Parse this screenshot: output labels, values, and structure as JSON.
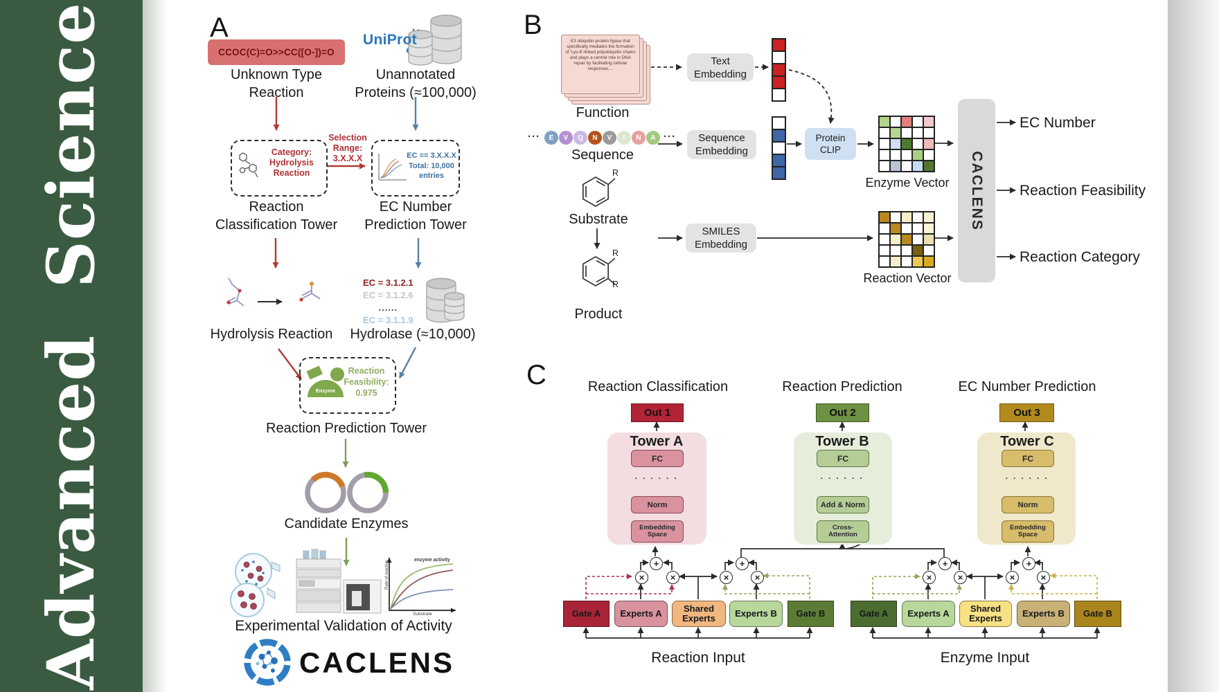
{
  "banner": {
    "title": "Advanced Science",
    "background": "#3a5b41"
  },
  "panel_a": {
    "label": "A",
    "smiles": "CCOC(C)=O>>CC([O-])=O",
    "unknown_lines": [
      "Unknown Type",
      "Reaction"
    ],
    "uniprot": "UniProt",
    "unannotated_lines": [
      "Unannotated",
      "Proteins (≈100,000)"
    ],
    "classification_box_lines": [
      "Category:",
      "Hydrolysis",
      "Reaction"
    ],
    "selection_lines": [
      "Selection",
      "Range:",
      "3.X.X.X"
    ],
    "ec_box_lines": [
      "EC == 3.X.X.X",
      "Total: 10,000",
      "entries"
    ],
    "tower1_lines": [
      "Reaction",
      "Classification Tower"
    ],
    "tower2_lines": [
      "EC Number",
      "Prediction Tower"
    ],
    "ec_list": [
      "EC = 3.1.2.1",
      "EC = 3.1.2.6",
      "......",
      "EC = 3.1.1.9"
    ],
    "hydrolysis_label": "Hydrolysis Reaction",
    "hydrolase_label": "Hydrolase (≈10,000)",
    "enzyme_icon_label": "Enzyme",
    "feasibility_lines": [
      "Reaction",
      "Feasibility:",
      "0.975"
    ],
    "tower3_label": "Reaction Prediction Tower",
    "candidate_label": "Candidate Enzymes",
    "activity_plot": {
      "curve_label": "enzyme activity",
      "ylabel": "Rate of reaction",
      "xlabel": "Substrate"
    },
    "validation_label": "Experimental Validation of Activity",
    "logo_text": "CACLENS"
  },
  "panel_b": {
    "label": "B",
    "function_card_text": "E3 ubiquitin-protein ligase that specifically mediates the formation of 'Lys-6'-linked polyubiquitin chains and plays a central role in DNA repair by facilitating cellular responses....",
    "function_label": "Function",
    "sequence_ellipsis": "···",
    "residues": [
      "E",
      "V",
      "Q",
      "N",
      "V",
      "I",
      "N",
      "A"
    ],
    "residue_colors": [
      "#7f9fc4",
      "#b58fd4",
      "#cbb8e6",
      "#b2541c",
      "#9b9b9b",
      "#dde8d0",
      "#e8a0a0",
      "#a4c97f"
    ],
    "sequence_label": "Sequence",
    "substrate_label": "Substrate",
    "r_label": "R",
    "product_label": "Product",
    "text_embedding_lines": [
      "Text",
      "Embedding"
    ],
    "sequence_embedding_lines": [
      "Sequence",
      "Embedding"
    ],
    "smiles_embedding_lines": [
      "SMILES",
      "Embedding"
    ],
    "protein_clip_lines": [
      "Protein",
      "CLIP"
    ],
    "text_embedding_cells": [
      "#cc2222",
      "#ffffff",
      "#cc2222",
      "#cc2222",
      "#ffffff"
    ],
    "sequence_embedding_cells": [
      "#ffffff",
      "#3f66a8",
      "#ffffff",
      "#3f66a8",
      "#3f66a8"
    ],
    "enzyme_vector_cells": [
      [
        "#b2d48c",
        "#ffffff",
        "#e2807c",
        "#ffffff",
        "#f4c9ce"
      ],
      [
        "#ffffff",
        "#b6d690",
        "#ffffff",
        "#ffffff",
        "#ffffff"
      ],
      [
        "#ffffff",
        "#cfdef2",
        "#4d7a31",
        "#ffffff",
        "#f0b9be"
      ],
      [
        "#ffffff",
        "#ffffff",
        "#ffffff",
        "#abd083",
        "#ffffff"
      ],
      [
        "#ffffff",
        "#b9c5d6",
        "#ffffff",
        "#c6daf2",
        "#55742f"
      ]
    ],
    "reaction_vector_cells": [
      [
        "#b8891f",
        "#ffffff",
        "#f6eec8",
        "#ffffff",
        "#f8f1d3"
      ],
      [
        "#ffffff",
        "#b8891f",
        "#ffffff",
        "#ffffff",
        "#faf4dc"
      ],
      [
        "#ffffff",
        "#f6eec8",
        "#b8891f",
        "#ffffff",
        "#eadfb0"
      ],
      [
        "#ffffff",
        "#ffffff",
        "#ffffff",
        "#7a5f10",
        "#ffffff"
      ],
      [
        "#ffffff",
        "#f6eec8",
        "#ffffff",
        "#ecc951",
        "#d9ab25"
      ]
    ],
    "enzyme_vector_label": "Enzyme Vector",
    "reaction_vector_label": "Reaction Vector",
    "caclens_label": "CACLENS",
    "outputs": [
      "EC Number",
      "Reaction Feasibility",
      "Reaction Category"
    ]
  },
  "panel_c": {
    "label": "C",
    "headings": [
      "Reaction Classification",
      "Reaction Prediction",
      "EC Number Prediction"
    ],
    "outs": [
      "Out 1",
      "Out 2",
      "Out 3"
    ],
    "dots": "· · · · · ·",
    "symbols": {
      "multiply": "×",
      "add": "+"
    },
    "towers": [
      {
        "title": "Tower A",
        "fc": "FC",
        "mid": "Norm",
        "bottom_lines": [
          "Embedding",
          "Space"
        ]
      },
      {
        "title": "Tower B",
        "fc": "FC",
        "mid": "Add & Norm",
        "bottom_lines": [
          "Cross-",
          "Attention"
        ]
      },
      {
        "title": "Tower C",
        "fc": "FC",
        "mid": "Norm",
        "bottom_lines": [
          "Embedding",
          "Space"
        ]
      }
    ],
    "moe_reaction": {
      "gate_a": "Gate A",
      "experts_a": "Experts A",
      "shared_lines": [
        "Shared",
        "Experts"
      ],
      "experts_b": "Experts B",
      "gate_b": "Gate B",
      "input_label": "Reaction Input"
    },
    "moe_enzyme": {
      "gate_a": "Gate A",
      "experts_a": "Experts A",
      "shared_lines": [
        "Shared",
        "Experts"
      ],
      "experts_b": "Experts B",
      "gate_b": "Gate B",
      "input_label": "Enzyme Input"
    }
  }
}
